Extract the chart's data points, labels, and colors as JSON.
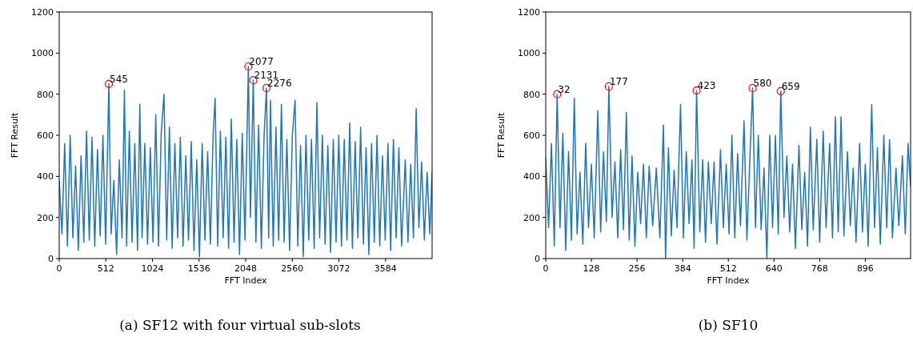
{
  "chart_data": [
    {
      "type": "line",
      "title": "(a) SF12 with four virtual sub-slots",
      "xlabel": "FFT Index",
      "ylabel": "FFT Result",
      "xlim": [
        0,
        4095
      ],
      "ylim": [
        0,
        1200
      ],
      "xticks": [
        0,
        512,
        1024,
        1536,
        2048,
        2560,
        3072,
        3584
      ],
      "yticks": [
        0,
        200,
        400,
        600,
        800,
        1000,
        1200
      ],
      "grid": false,
      "series": [
        {
          "color": "#1f77b4",
          "x": [
            0,
            30,
            60,
            90,
            120,
            150,
            180,
            210,
            240,
            270,
            300,
            330,
            360,
            390,
            420,
            450,
            480,
            510,
            545,
            570,
            600,
            630,
            660,
            690,
            716,
            740,
            770,
            800,
            830,
            860,
            885,
            910,
            940,
            970,
            1000,
            1030,
            1060,
            1090,
            1120,
            1151,
            1180,
            1210,
            1240,
            1270,
            1300,
            1330,
            1360,
            1390,
            1420,
            1450,
            1480,
            1510,
            1540,
            1570,
            1600,
            1630,
            1660,
            1690,
            1712,
            1740,
            1770,
            1800,
            1830,
            1860,
            1890,
            1920,
            1950,
            1980,
            2010,
            2040,
            2077,
            2100,
            2131,
            2160,
            2190,
            2220,
            2250,
            2276,
            2300,
            2320,
            2350,
            2380,
            2410,
            2440,
            2470,
            2500,
            2530,
            2560,
            2590,
            2620,
            2650,
            2680,
            2710,
            2740,
            2770,
            2800,
            2830,
            2860,
            2890,
            2920,
            2950,
            2980,
            3010,
            3040,
            3070,
            3100,
            3130,
            3160,
            3190,
            3220,
            3250,
            3280,
            3310,
            3340,
            3370,
            3400,
            3430,
            3460,
            3490,
            3520,
            3550,
            3580,
            3610,
            3640,
            3670,
            3700,
            3730,
            3760,
            3800,
            3830,
            3860,
            3890,
            3920,
            3950,
            3980,
            4010,
            4040,
            4070,
            4095
          ],
          "values": [
            380,
            120,
            560,
            60,
            600,
            100,
            450,
            40,
            500,
            80,
            620,
            90,
            590,
            60,
            530,
            110,
            600,
            70,
            850,
            120,
            380,
            20,
            480,
            100,
            820,
            60,
            620,
            80,
            560,
            40,
            750,
            100,
            560,
            70,
            540,
            80,
            700,
            60,
            610,
            800,
            90,
            640,
            50,
            560,
            100,
            590,
            60,
            500,
            90,
            570,
            40,
            480,
            10,
            560,
            90,
            520,
            70,
            600,
            780,
            60,
            620,
            100,
            590,
            50,
            680,
            80,
            580,
            20,
            610,
            90,
            935,
            200,
            868,
            80,
            650,
            50,
            600,
            830,
            100,
            770,
            60,
            640,
            90,
            750,
            80,
            580,
            40,
            600,
            770,
            60,
            550,
            10,
            600,
            90,
            580,
            50,
            760,
            100,
            600,
            70,
            550,
            30,
            580,
            80,
            600,
            60,
            580,
            90,
            660,
            50,
            570,
            100,
            640,
            70,
            540,
            20,
            560,
            80,
            600,
            60,
            500,
            90,
            560,
            40,
            580,
            100,
            540,
            60,
            480,
            80,
            460,
            100,
            730,
            150,
            470,
            90,
            420,
            120,
            420
          ]
        },
        {
          "type": "scatter",
          "color": "#ff0000",
          "marker": "circle",
          "x": [
            545,
            2077,
            2131,
            2276
          ],
          "values": [
            850,
            935,
            868,
            830
          ]
        }
      ],
      "annotations": [
        {
          "text": "545",
          "x": 545,
          "y": 850
        },
        {
          "text": "2077",
          "x": 2077,
          "y": 935
        },
        {
          "text": "2131",
          "x": 2131,
          "y": 868
        },
        {
          "text": "2276",
          "x": 2276,
          "y": 830
        }
      ]
    },
    {
      "type": "line",
      "title": "(b) SF10",
      "xlabel": "FFT Index",
      "ylabel": "FFT Result",
      "xlim": [
        0,
        1023
      ],
      "ylim": [
        0,
        1200
      ],
      "xticks": [
        0,
        128,
        256,
        384,
        512,
        640,
        768,
        896
      ],
      "yticks": [
        0,
        200,
        400,
        600,
        800,
        1000,
        1200
      ],
      "grid": false,
      "series": [
        {
          "color": "#1f77b4",
          "x": [
            0,
            8,
            16,
            24,
            32,
            40,
            48,
            56,
            64,
            72,
            80,
            88,
            96,
            104,
            112,
            120,
            128,
            136,
            146,
            154,
            162,
            170,
            177,
            186,
            194,
            202,
            210,
            218,
            226,
            234,
            242,
            250,
            258,
            266,
            274,
            282,
            290,
            300,
            310,
            320,
            330,
            336,
            344,
            352,
            360,
            368,
            378,
            386,
            394,
            402,
            410,
            416,
            423,
            432,
            440,
            448,
            456,
            464,
            472,
            480,
            490,
            498,
            506,
            514,
            522,
            530,
            538,
            546,
            556,
            564,
            572,
            580,
            588,
            596,
            604,
            612,
            620,
            628,
            636,
            644,
            652,
            659,
            668,
            676,
            684,
            692,
            700,
            710,
            718,
            726,
            734,
            742,
            750,
            760,
            768,
            778,
            786,
            796,
            804,
            812,
            820,
            828,
            836,
            846,
            854,
            862,
            870,
            880,
            888,
            896,
            904,
            914,
            922,
            930,
            938,
            948,
            956,
            964,
            972,
            982,
            990,
            1000,
            1008,
            1016,
            1023
          ],
          "values": [
            490,
            150,
            560,
            60,
            800,
            150,
            610,
            40,
            520,
            90,
            780,
            120,
            420,
            70,
            560,
            150,
            460,
            100,
            720,
            130,
            520,
            180,
            838,
            200,
            470,
            100,
            530,
            140,
            710,
            90,
            500,
            60,
            420,
            170,
            460,
            100,
            450,
            160,
            440,
            100,
            650,
            0,
            540,
            110,
            430,
            150,
            750,
            100,
            520,
            170,
            480,
            50,
            818,
            130,
            480,
            80,
            470,
            170,
            470,
            70,
            530,
            150,
            460,
            120,
            600,
            100,
            510,
            160,
            670,
            90,
            470,
            830,
            150,
            600,
            140,
            440,
            0,
            600,
            150,
            600,
            120,
            815,
            200,
            500,
            130,
            460,
            50,
            550,
            140,
            420,
            60,
            640,
            140,
            580,
            80,
            620,
            150,
            560,
            100,
            690,
            130,
            690,
            110,
            520,
            160,
            440,
            80,
            560,
            130,
            460,
            60,
            750,
            150,
            540,
            70,
            600,
            150,
            580,
            100,
            440,
            160,
            500,
            120,
            560,
            350
          ]
        },
        {
          "type": "scatter",
          "color": "#ff0000",
          "marker": "circle",
          "x": [
            32,
            177,
            423,
            580,
            659
          ],
          "values": [
            800,
            838,
            818,
            830,
            815
          ]
        }
      ],
      "annotations": [
        {
          "text": "32",
          "x": 32,
          "y": 800
        },
        {
          "text": "177",
          "x": 177,
          "y": 838
        },
        {
          "text": "423",
          "x": 423,
          "y": 818
        },
        {
          "text": "580",
          "x": 580,
          "y": 830
        },
        {
          "text": "659",
          "x": 659,
          "y": 815
        }
      ]
    }
  ]
}
